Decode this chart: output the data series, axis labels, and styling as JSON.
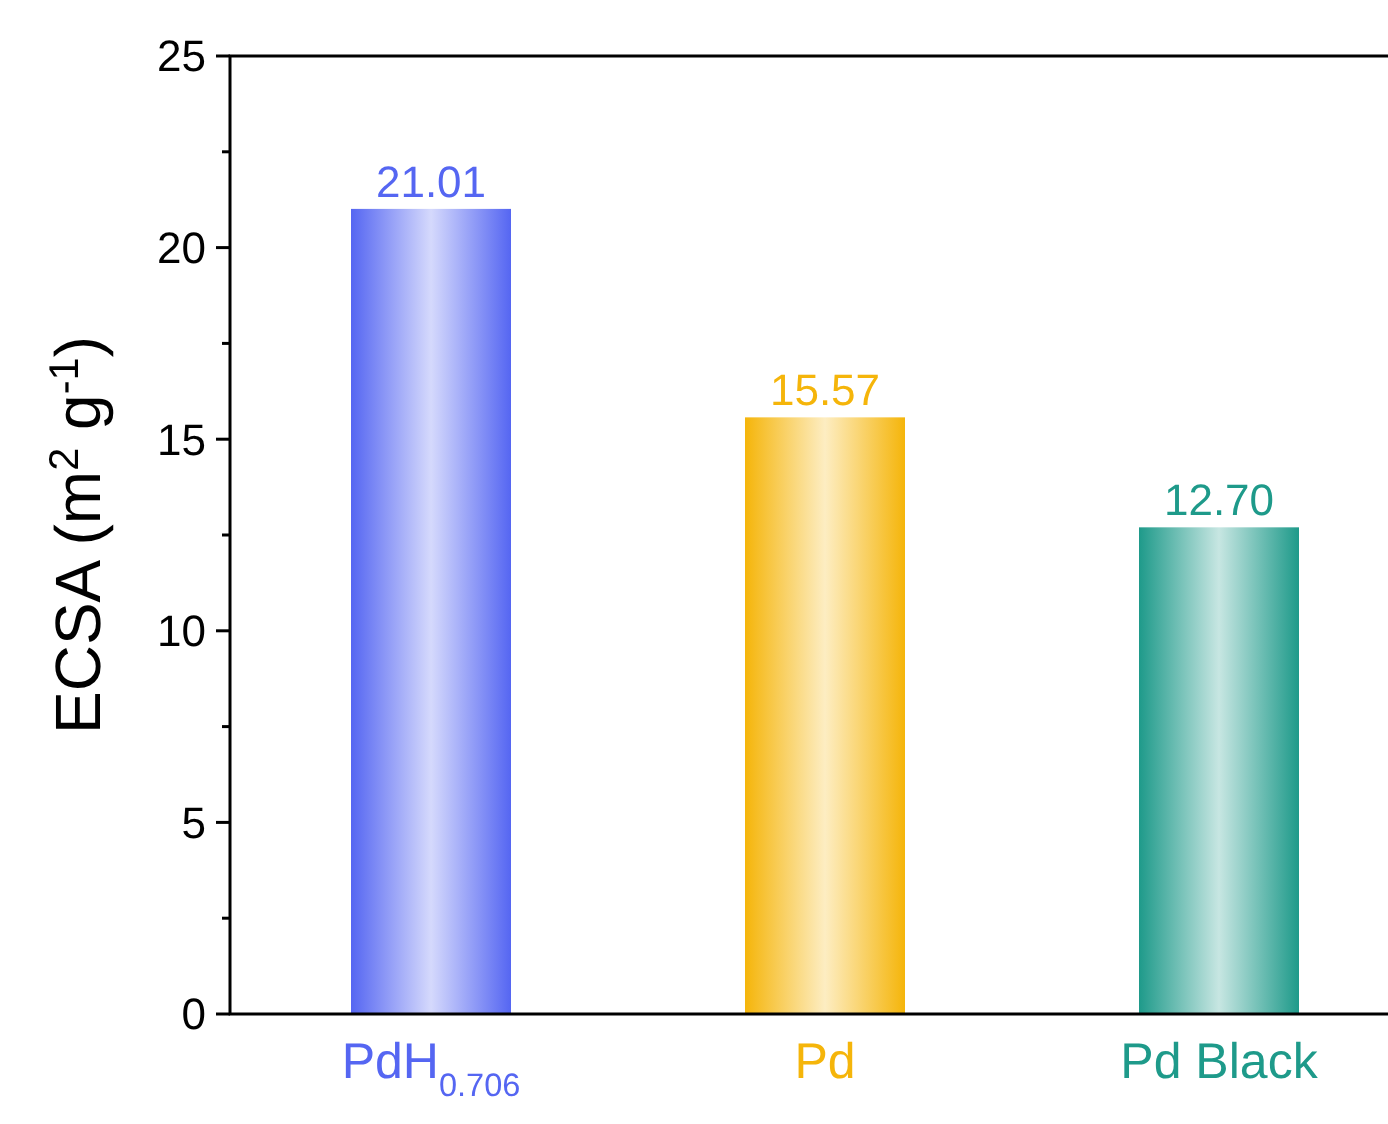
{
  "chart_data": {
    "type": "bar",
    "ylabel": "ECSA (m$^{2}$ g$^{-1}$)",
    "categories": [
      "PdH$_{0.706}$",
      "Pd",
      "Pd Black"
    ],
    "values": [
      21.01,
      15.57,
      12.7
    ],
    "value_labels": [
      "21.01",
      "15.57",
      "12.70"
    ],
    "colors": [
      "#5566f2",
      "#f5b50a",
      "#1e9a8a"
    ],
    "ylim": [
      0,
      25
    ],
    "yticks": [
      0,
      {
        "value": 2.5,
        "label": null
      },
      5,
      {
        "value": 7.5,
        "label": null
      },
      10,
      {
        "value": 12.5,
        "label": null
      },
      15,
      {
        "value": 17.5,
        "label": null
      },
      20,
      {
        "value": 22.5,
        "label": null
      },
      25
    ],
    "grid": false
  }
}
